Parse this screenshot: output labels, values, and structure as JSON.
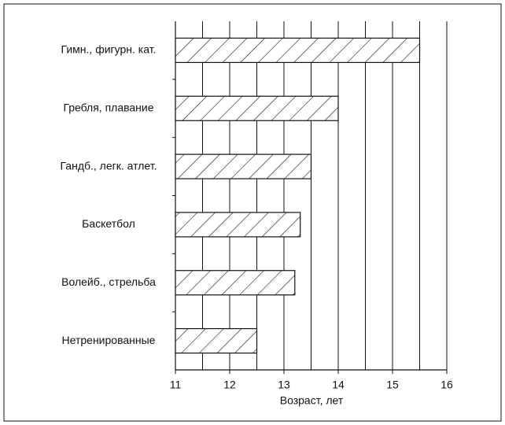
{
  "chart_data": {
    "type": "bar",
    "orientation": "horizontal",
    "categories": [
      "Гимн., фигурн. кат.",
      "Гребля, плавание",
      "Гандб., легк. атлет.",
      "Баскетбол",
      "Волейб., стрельба",
      "Нетренированные"
    ],
    "values": [
      15.5,
      14.0,
      13.5,
      13.3,
      13.2,
      12.5
    ],
    "color": "#ffffff",
    "hatch": true,
    "xlabel": "Возраст, лет",
    "xlim": [
      11,
      16
    ],
    "xticks": [
      11,
      12,
      13,
      14,
      15,
      16
    ],
    "xminor": [
      11.5,
      12.5,
      13.5,
      14.5,
      15.5
    ],
    "grid": true
  }
}
